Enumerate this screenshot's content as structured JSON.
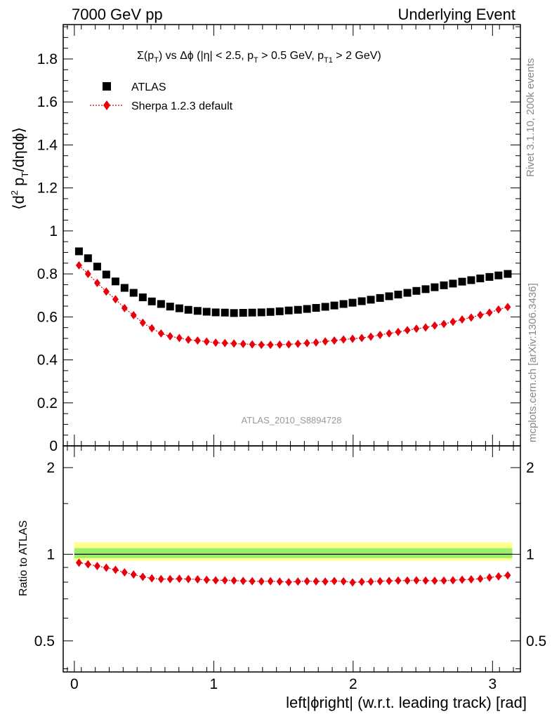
{
  "header": {
    "left_label": "7000 GeV pp",
    "right_label": "Underlying Event"
  },
  "side_text": {
    "rivet": "Rivet 3.1.10,  200k events",
    "mcplots": "mcplots.cern.ch [arXiv:1306.3436]"
  },
  "watermark": "ATLAS_2010_S8894728",
  "title_parts": {
    "sigma": "Σ(p",
    "sub_T": "T",
    "mid1": ") vs Δϕ (|η| < 2.5, p",
    "mid2": " > 0.5 GeV, p",
    "sub_T1": "T1",
    "end": " > 2 GeV)"
  },
  "ylabel_parts": {
    "open": "⟨d",
    "sup2": "2",
    "p": " p",
    "subT": "T",
    "rest": "/dηdϕ⟩"
  },
  "xlabel": "left|ϕright| (w.r.t. leading track) [rad]",
  "ratio_ylabel": "Ratio to ATLAS",
  "legend": {
    "data_label": "ATLAS",
    "mc_label": "Sherpa 1.2.3 default"
  },
  "colors": {
    "data": "#000000",
    "mc": "#e8000b",
    "band_outer": "#ffff8c",
    "band_inner": "#9bef6a"
  },
  "chart_data": [
    {
      "type": "scatter",
      "panel": "main",
      "title": "Σ(pT) vs Δϕ (|η| < 2.5, pT > 0.5 GeV, pT1 > 2 GeV)",
      "xlabel": "left|ϕright| (w.r.t. leading track) [rad]",
      "ylabel": "⟨d² pT/dηdϕ⟩",
      "xlim": [
        -0.08,
        3.2
      ],
      "ylim": [
        0,
        1.96
      ],
      "x_ticks": [
        "0",
        "1",
        "2",
        "3"
      ],
      "y_ticks": [
        "0",
        "0.2",
        "0.4",
        "0.6",
        "0.8",
        "1",
        "1.2",
        "1.4",
        "1.6",
        "1.8"
      ],
      "x": [
        0.033,
        0.098,
        0.164,
        0.229,
        0.295,
        0.36,
        0.425,
        0.491,
        0.556,
        0.622,
        0.687,
        0.753,
        0.818,
        0.884,
        0.949,
        1.014,
        1.08,
        1.145,
        1.211,
        1.276,
        1.342,
        1.407,
        1.473,
        1.538,
        1.604,
        1.669,
        1.734,
        1.8,
        1.865,
        1.931,
        1.996,
        2.062,
        2.127,
        2.193,
        2.258,
        2.323,
        2.389,
        2.454,
        2.52,
        2.585,
        2.651,
        2.716,
        2.782,
        2.847,
        2.912,
        2.978,
        3.043,
        3.109
      ],
      "series": [
        {
          "name": "ATLAS",
          "marker": "square",
          "values": [
            0.905,
            0.873,
            0.834,
            0.797,
            0.765,
            0.735,
            0.712,
            0.691,
            0.672,
            0.66,
            0.648,
            0.64,
            0.633,
            0.628,
            0.624,
            0.621,
            0.62,
            0.618,
            0.619,
            0.62,
            0.621,
            0.623,
            0.626,
            0.63,
            0.633,
            0.637,
            0.642,
            0.647,
            0.653,
            0.66,
            0.666,
            0.673,
            0.68,
            0.688,
            0.696,
            0.704,
            0.712,
            0.721,
            0.729,
            0.738,
            0.747,
            0.755,
            0.764,
            0.771,
            0.779,
            0.786,
            0.793,
            0.8
          ]
        },
        {
          "name": "Sherpa 1.2.3 default",
          "marker": "diamond",
          "values": [
            0.84,
            0.8,
            0.758,
            0.718,
            0.682,
            0.641,
            0.608,
            0.573,
            0.547,
            0.523,
            0.51,
            0.502,
            0.494,
            0.49,
            0.485,
            0.48,
            0.478,
            0.476,
            0.474,
            0.472,
            0.47,
            0.47,
            0.471,
            0.472,
            0.475,
            0.478,
            0.481,
            0.486,
            0.49,
            0.495,
            0.498,
            0.502,
            0.508,
            0.516,
            0.523,
            0.53,
            0.538,
            0.545,
            0.551,
            0.56,
            0.567,
            0.577,
            0.588,
            0.597,
            0.609,
            0.62,
            0.634,
            0.646
          ]
        }
      ]
    },
    {
      "type": "scatter",
      "panel": "ratio",
      "ylabel": "Ratio to ATLAS",
      "xlabel": "left|ϕright| (w.r.t. leading track) [rad]",
      "y_scale": "log",
      "xlim": [
        -0.08,
        3.2
      ],
      "ylim": [
        0.39,
        2.38
      ],
      "y_ticks": [
        "0.5",
        "1",
        "2"
      ],
      "x_ticks": [
        "0",
        "1",
        "2",
        "3"
      ],
      "reference": 1,
      "band_outer": [
        0.95,
        1.1
      ],
      "band_inner": [
        0.97,
        1.05
      ],
      "x": [
        0.033,
        0.098,
        0.164,
        0.229,
        0.295,
        0.36,
        0.425,
        0.491,
        0.556,
        0.622,
        0.687,
        0.753,
        0.818,
        0.884,
        0.949,
        1.014,
        1.08,
        1.145,
        1.211,
        1.276,
        1.342,
        1.407,
        1.473,
        1.538,
        1.604,
        1.669,
        1.734,
        1.8,
        1.865,
        1.931,
        1.996,
        2.062,
        2.127,
        2.193,
        2.258,
        2.323,
        2.389,
        2.454,
        2.52,
        2.585,
        2.651,
        2.716,
        2.782,
        2.847,
        2.912,
        2.978,
        3.043,
        3.109
      ],
      "series": [
        {
          "name": "Sherpa 1.2.3 default / ATLAS",
          "marker": "diamond",
          "values": [
            0.935,
            0.923,
            0.91,
            0.898,
            0.883,
            0.865,
            0.85,
            0.835,
            0.825,
            0.82,
            0.82,
            0.822,
            0.82,
            0.818,
            0.815,
            0.812,
            0.812,
            0.81,
            0.808,
            0.806,
            0.805,
            0.806,
            0.804,
            0.8,
            0.804,
            0.806,
            0.805,
            0.804,
            0.807,
            0.805,
            0.798,
            0.802,
            0.803,
            0.806,
            0.808,
            0.81,
            0.81,
            0.812,
            0.81,
            0.809,
            0.81,
            0.812,
            0.816,
            0.818,
            0.822,
            0.83,
            0.838,
            0.845
          ]
        }
      ]
    }
  ]
}
